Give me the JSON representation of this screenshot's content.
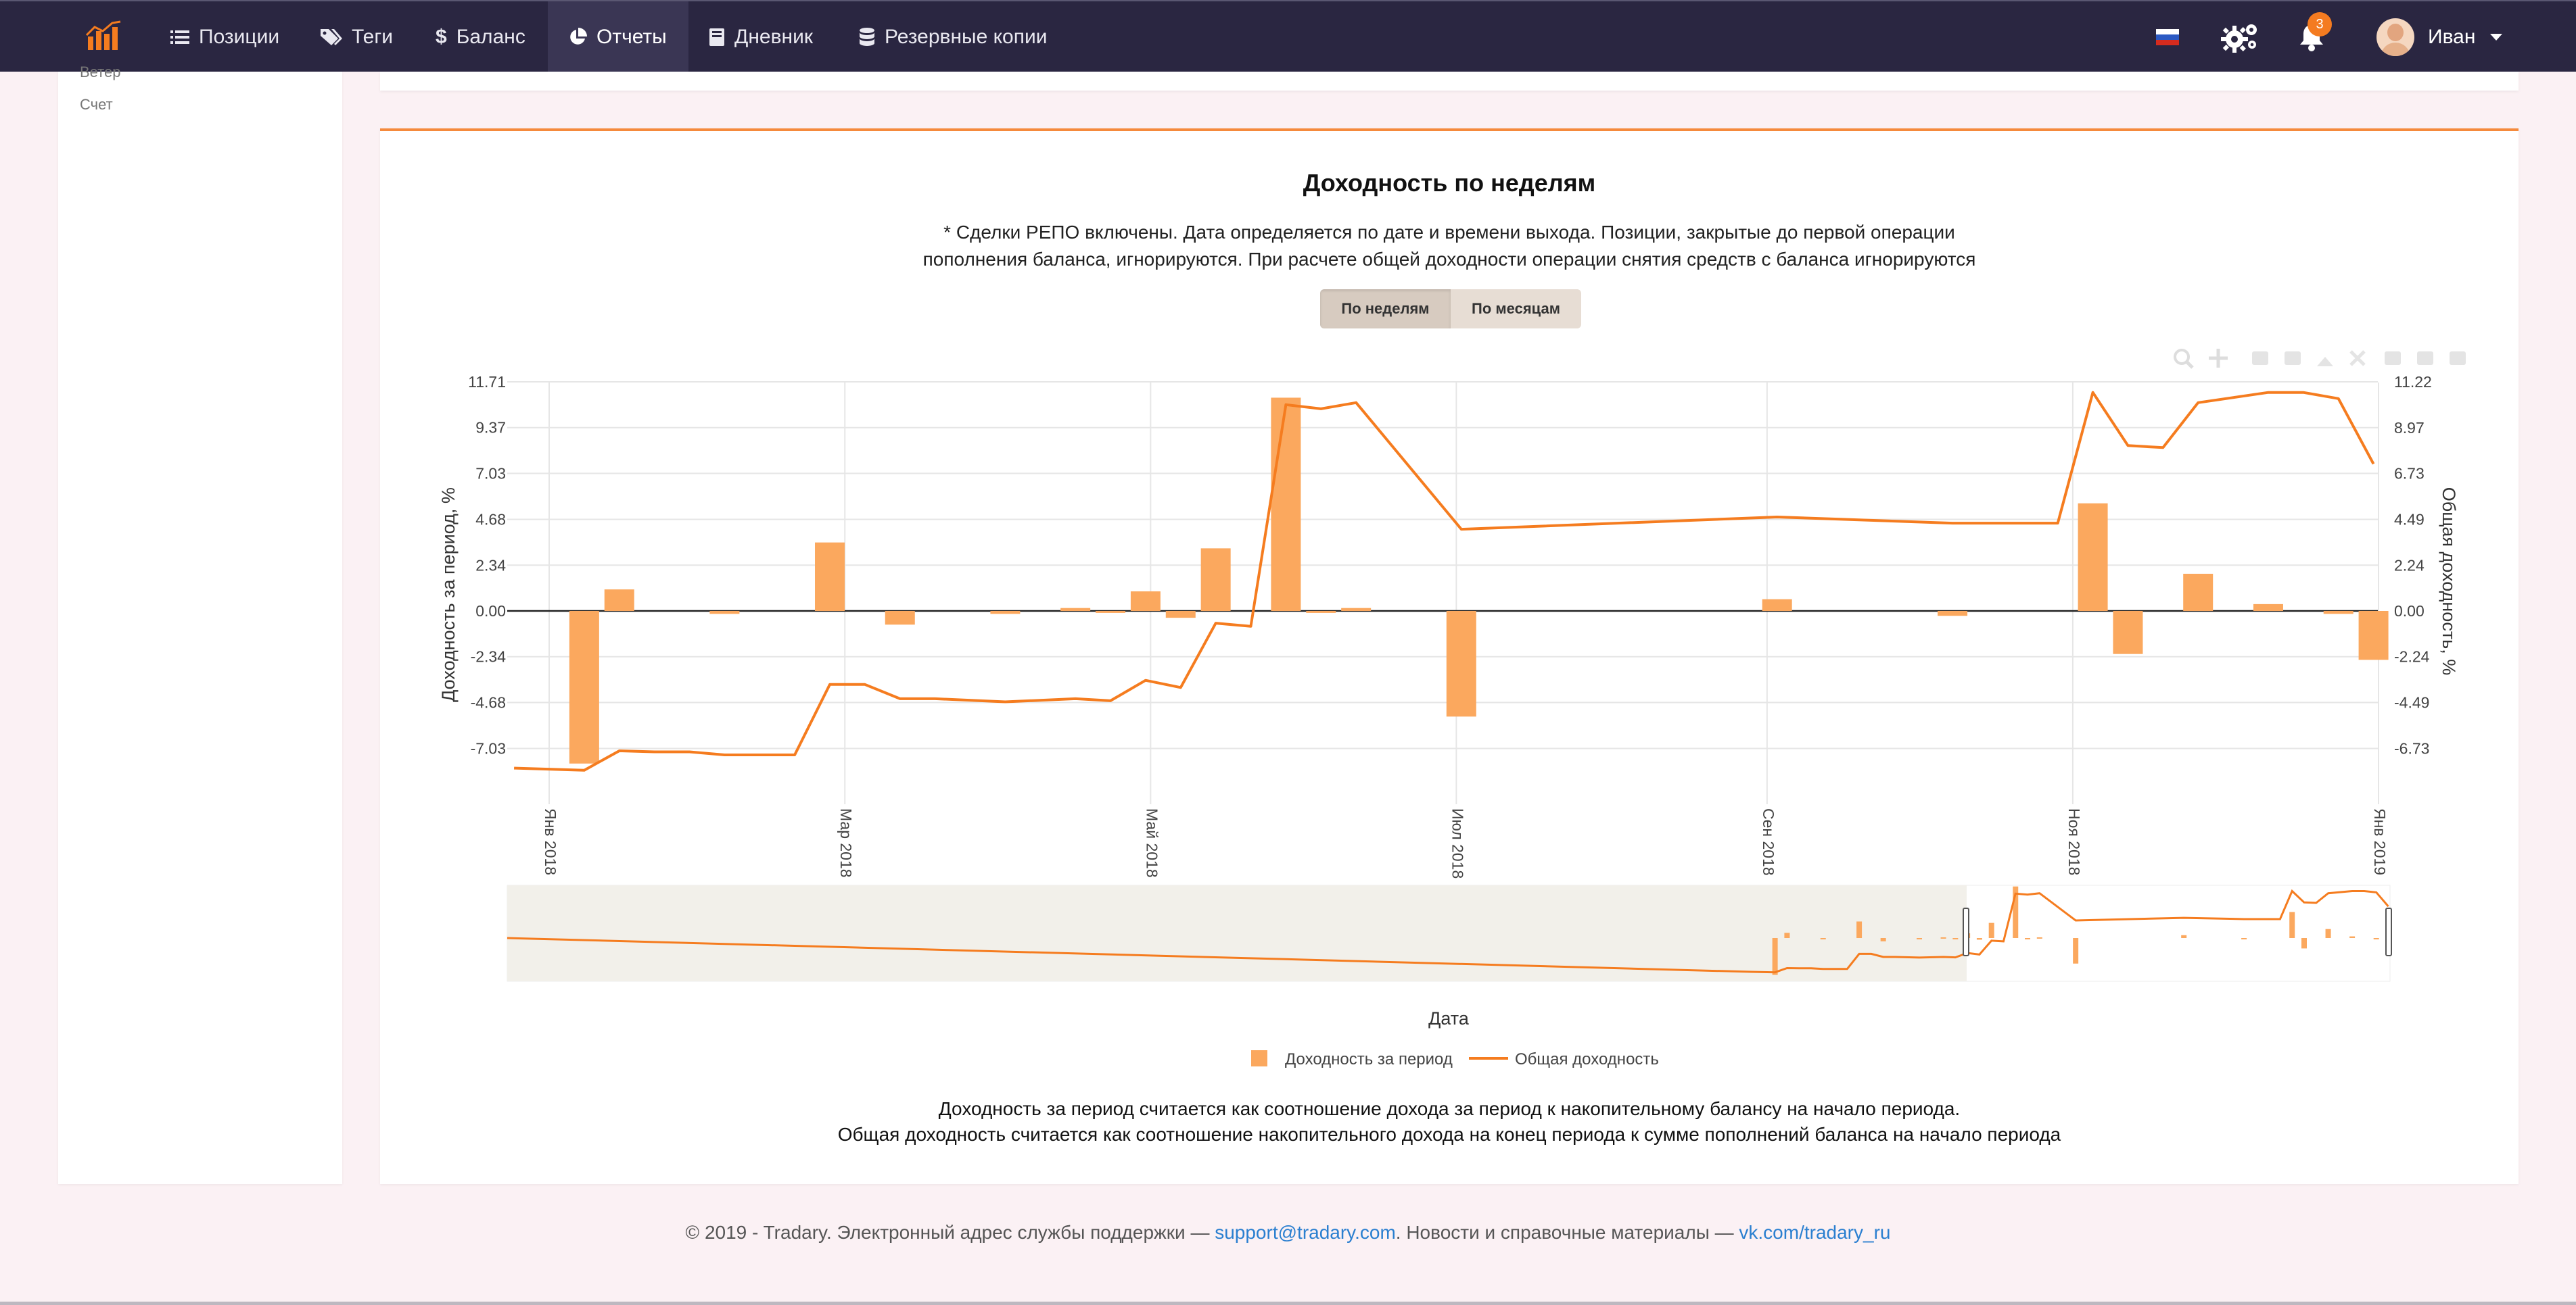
{
  "nav": {
    "items": [
      {
        "label": "Позиции",
        "icon": "list-icon"
      },
      {
        "label": "Теги",
        "icon": "tags-icon"
      },
      {
        "label": "Баланс",
        "icon": "dollar-icon"
      },
      {
        "label": "Отчеты",
        "icon": "pie-chart-icon",
        "active": true
      },
      {
        "label": "Дневник",
        "icon": "book-icon"
      },
      {
        "label": "Резервные копии",
        "icon": "database-icon"
      }
    ],
    "notifications_count": "3",
    "user_name": "Иван"
  },
  "sidebar": {
    "items": [
      "Ветер",
      "Счет"
    ]
  },
  "report": {
    "title": "Доходность по неделям",
    "description_line1": "* Сделки РЕПО включены. Дата определяется по дате и времени выхода. Позиции, закрытые до первой операции",
    "description_line2": "пополнения баланса, игнорируются. При расчете общей доходности операции снятия средств с баланса игнорируются",
    "toggle": {
      "weeks": "По неделям",
      "months": "По месяцам",
      "active": "weeks"
    },
    "footnote_line1": "Доходность за период считается как соотношение дохода за период к накопительному балансу на начало периода.",
    "footnote_line2": "Общая доходность считается как соотношение накопительного дохода на конец периода к сумме пополнений баланса на начало периода"
  },
  "chart_data": {
    "type": "bar+line",
    "title": "",
    "xlabel": "Дата",
    "ylabel_left": "Доходность за период, %",
    "ylabel_right": "Общая доходность, %",
    "x_range": [
      "2018-01-01",
      "2019-01-01"
    ],
    "x_ticks": [
      {
        "date": "2018-01-01",
        "label": "Янв 2018"
      },
      {
        "date": "2018-03-01",
        "label": "Мар 2018"
      },
      {
        "date": "2018-05-01",
        "label": "Май 2018"
      },
      {
        "date": "2018-07-01",
        "label": "Июл 2018"
      },
      {
        "date": "2018-09-01",
        "label": "Сен 2018"
      },
      {
        "date": "2018-11-01",
        "label": "Ноя 2018"
      },
      {
        "date": "2019-01-01",
        "label": "Янв 2019"
      }
    ],
    "y_left_ticks": [
      11.71,
      9.37,
      7.03,
      4.68,
      2.34,
      0.0,
      -2.34,
      -4.68,
      -7.03
    ],
    "y_left_range": [
      -8.2,
      11.71
    ],
    "y_right_ticks": [
      11.22,
      8.97,
      6.73,
      4.49,
      2.24,
      0.0,
      -2.24,
      -4.49,
      -6.73
    ],
    "y_right_range": [
      -7.85,
      11.22
    ],
    "legend": [
      "Доходность за период",
      "Общая доходность"
    ],
    "legend_position": "bottom-center",
    "grid": true,
    "colors": {
      "bar": "#fba85e",
      "line": "#f57c1f"
    },
    "bars": [
      {
        "date": "2018-01-08",
        "value": -7.8
      },
      {
        "date": "2018-01-15",
        "value": 1.1
      },
      {
        "date": "2018-02-05",
        "value": -0.15
      },
      {
        "date": "2018-02-26",
        "value": 3.5
      },
      {
        "date": "2018-03-12",
        "value": -0.7
      },
      {
        "date": "2018-04-02",
        "value": -0.15
      },
      {
        "date": "2018-04-16",
        "value": 0.15
      },
      {
        "date": "2018-04-23",
        "value": -0.1
      },
      {
        "date": "2018-04-30",
        "value": 1.0
      },
      {
        "date": "2018-05-07",
        "value": -0.35
      },
      {
        "date": "2018-05-14",
        "value": 3.2
      },
      {
        "date": "2018-05-28",
        "value": 10.9
      },
      {
        "date": "2018-06-04",
        "value": -0.1
      },
      {
        "date": "2018-06-11",
        "value": 0.15
      },
      {
        "date": "2018-07-02",
        "value": -5.4
      },
      {
        "date": "2018-09-03",
        "value": 0.6
      },
      {
        "date": "2018-10-08",
        "value": -0.25
      },
      {
        "date": "2018-11-05",
        "value": 5.5
      },
      {
        "date": "2018-11-12",
        "value": -2.2
      },
      {
        "date": "2018-11-26",
        "value": 1.9
      },
      {
        "date": "2018-12-10",
        "value": 0.35
      },
      {
        "date": "2018-12-24",
        "value": -0.15
      },
      {
        "date": "2018-12-31",
        "value": -2.5
      }
    ],
    "line": [
      {
        "date": "2017-12-25",
        "value": -7.7
      },
      {
        "date": "2018-01-08",
        "value": -7.8
      },
      {
        "date": "2018-01-15",
        "value": -6.85
      },
      {
        "date": "2018-01-22",
        "value": -6.9
      },
      {
        "date": "2018-01-29",
        "value": -6.9
      },
      {
        "date": "2018-02-05",
        "value": -7.05
      },
      {
        "date": "2018-02-19",
        "value": -7.05
      },
      {
        "date": "2018-02-26",
        "value": -3.6
      },
      {
        "date": "2018-03-05",
        "value": -3.6
      },
      {
        "date": "2018-03-12",
        "value": -4.3
      },
      {
        "date": "2018-03-19",
        "value": -4.3
      },
      {
        "date": "2018-04-02",
        "value": -4.45
      },
      {
        "date": "2018-04-16",
        "value": -4.3
      },
      {
        "date": "2018-04-23",
        "value": -4.4
      },
      {
        "date": "2018-04-30",
        "value": -3.4
      },
      {
        "date": "2018-05-07",
        "value": -3.75
      },
      {
        "date": "2018-05-14",
        "value": -0.6
      },
      {
        "date": "2018-05-21",
        "value": -0.75
      },
      {
        "date": "2018-05-28",
        "value": 10.1
      },
      {
        "date": "2018-06-04",
        "value": 9.9
      },
      {
        "date": "2018-06-11",
        "value": 10.2
      },
      {
        "date": "2018-07-02",
        "value": 4.0
      },
      {
        "date": "2018-09-03",
        "value": 4.6
      },
      {
        "date": "2018-10-08",
        "value": 4.3
      },
      {
        "date": "2018-10-29",
        "value": 4.3
      },
      {
        "date": "2018-11-05",
        "value": 10.7
      },
      {
        "date": "2018-11-12",
        "value": 8.1
      },
      {
        "date": "2018-11-19",
        "value": 8.0
      },
      {
        "date": "2018-11-26",
        "value": 10.2
      },
      {
        "date": "2018-12-10",
        "value": 10.7
      },
      {
        "date": "2018-12-17",
        "value": 10.7
      },
      {
        "date": "2018-12-24",
        "value": 10.4
      },
      {
        "date": "2018-12-31",
        "value": 7.2
      }
    ]
  },
  "footer": {
    "text1": "© 2019 - Tradary. Электронный адрес службы поддержки — ",
    "email": "support@tradary.com",
    "text2": ". Новости и справочные материалы — ",
    "vk": "vk.com/tradary_ru"
  }
}
